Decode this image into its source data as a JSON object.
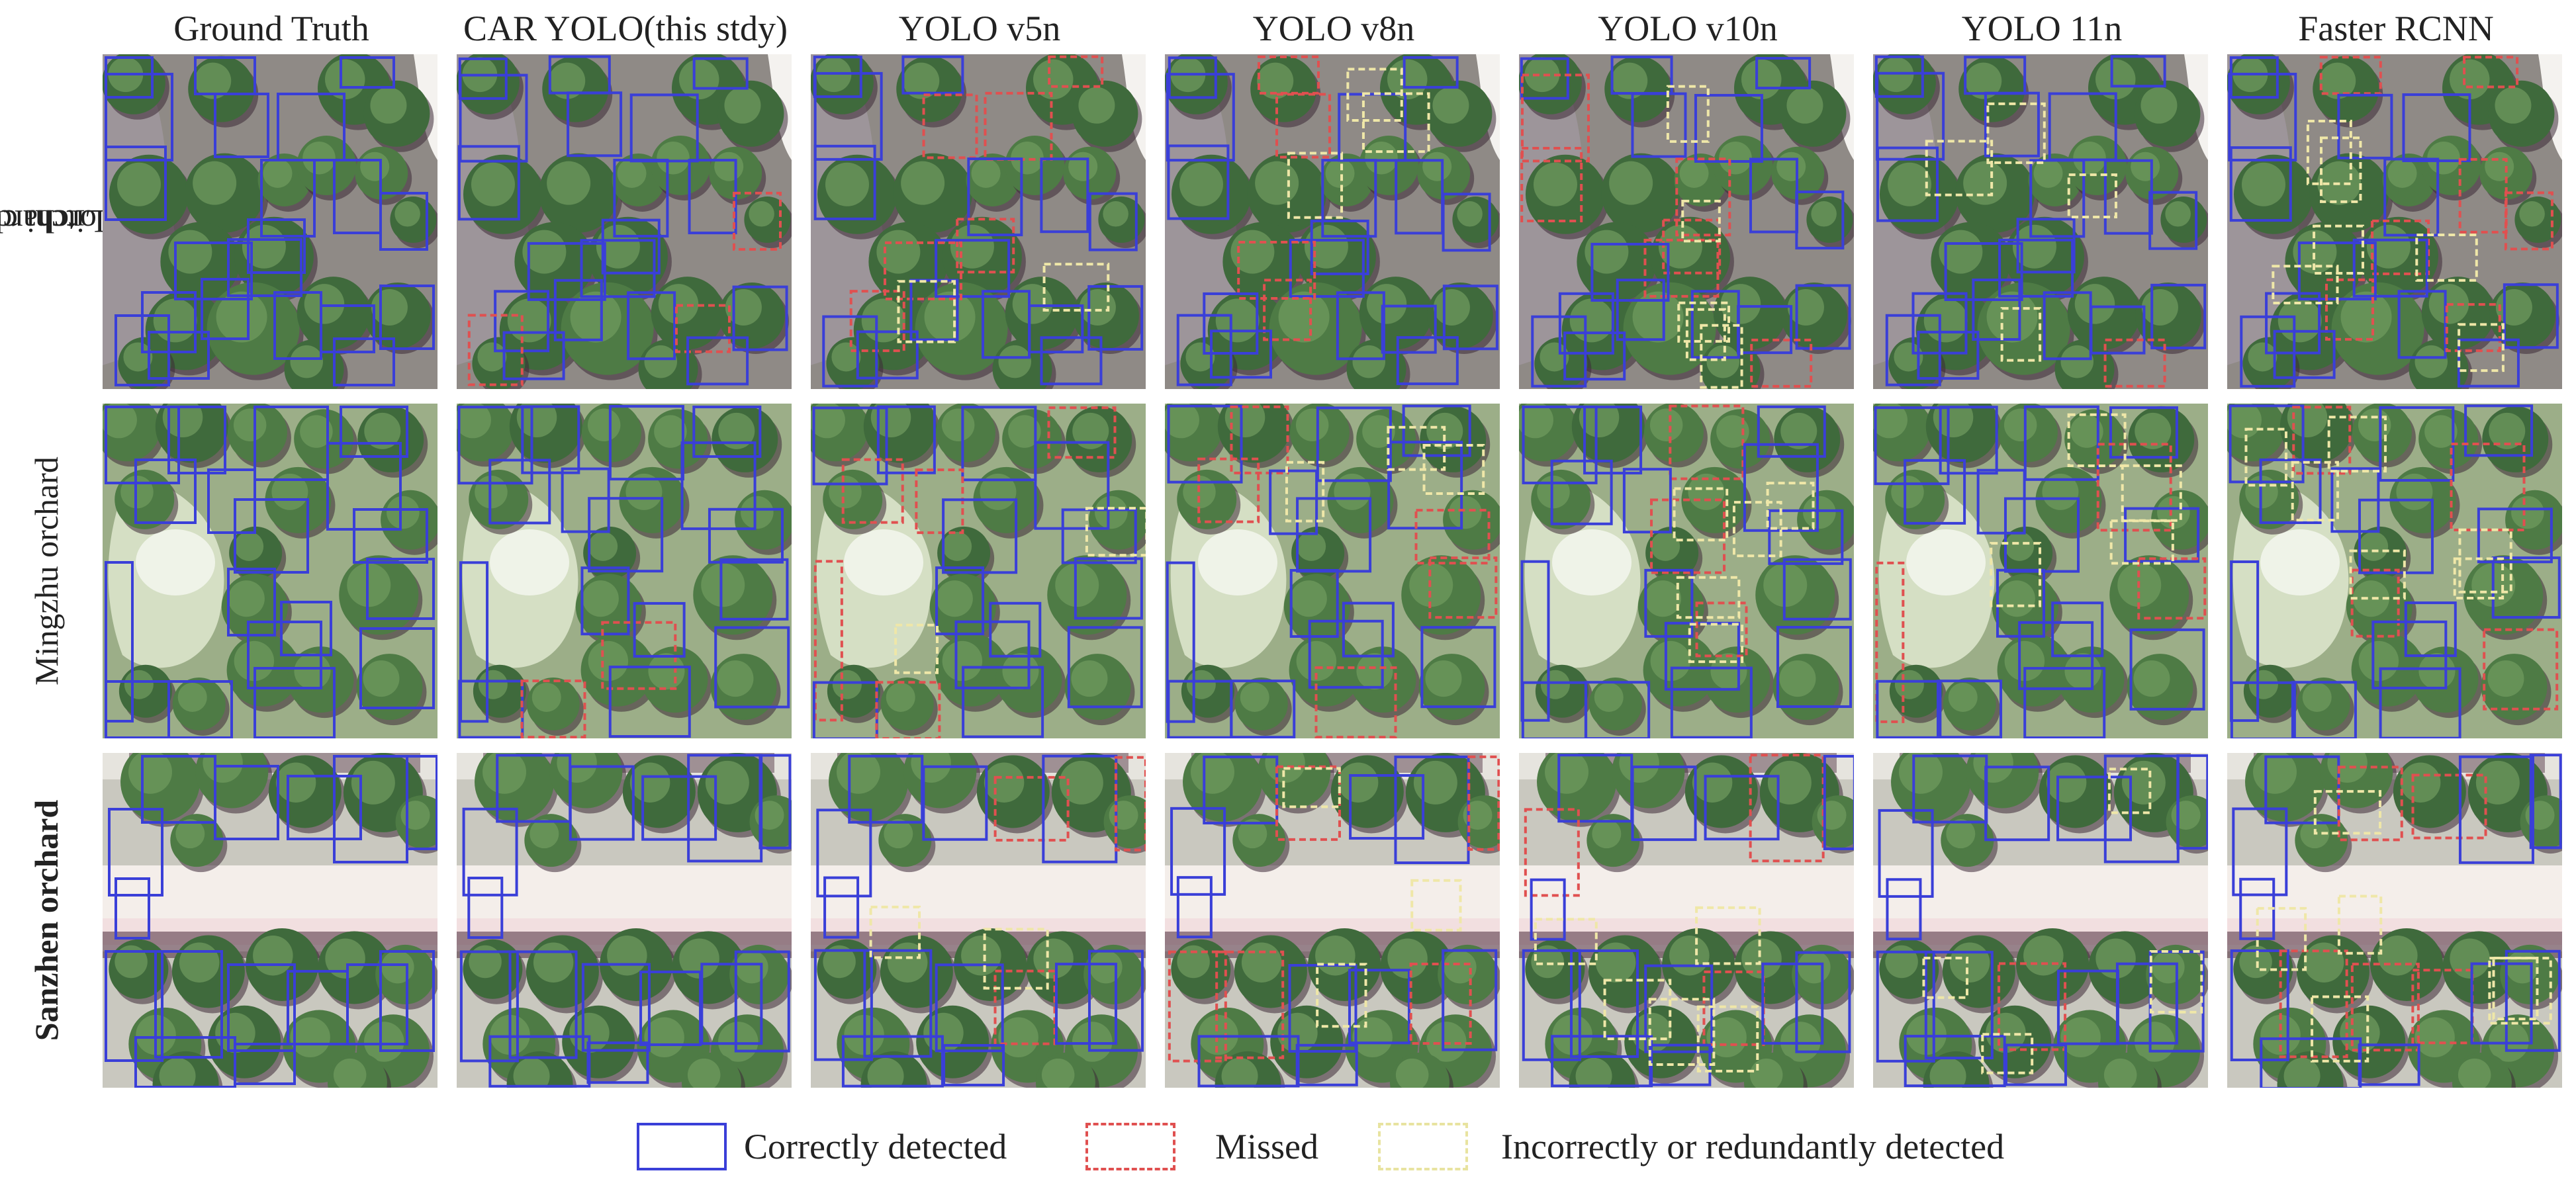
{
  "columns": [
    "Ground Truth",
    "CAR YOLO(this stdy)",
    "YOLO v5n",
    "YOLO v8n",
    "YOLO v10n",
    "YOLO 11n",
    "Faster RCNN"
  ],
  "rows": [
    {
      "label_line1": "Litchi cultural",
      "label_line2": "expo orchard",
      "scene": "litchi"
    },
    {
      "label_line1": "Mingzhu orchard",
      "label_line2": "",
      "scene": "mingzhu"
    },
    {
      "label_line1": "Sanzhen orchard",
      "label_line2": "",
      "scene": "sanzhen"
    }
  ],
  "legend": {
    "correct": "Correctly detected",
    "missed": "Missed",
    "incorrect": "Incorrectly or redundantly detected"
  },
  "colors": {
    "correct": "#3a3fd8",
    "missed": "#e05050",
    "incorrect": "#efe7a8"
  }
}
